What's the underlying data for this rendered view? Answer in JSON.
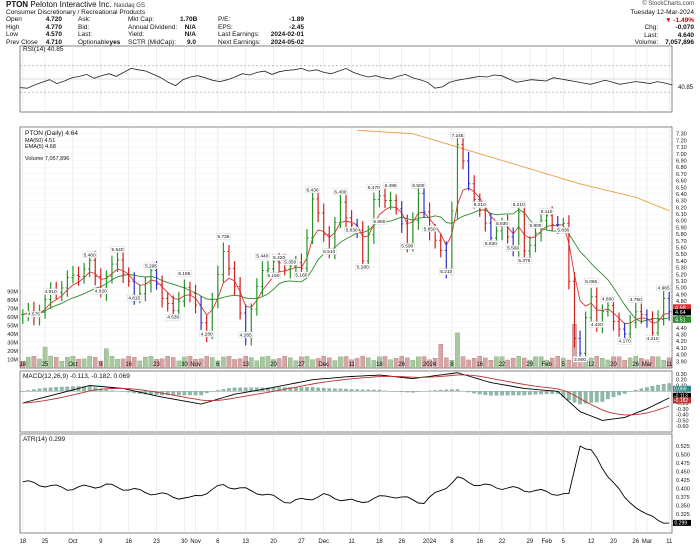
{
  "header": {
    "ticker": "PTON",
    "company": "Peloton Interactive Inc.",
    "exchange": "Nasdaq GS",
    "sector": "Consumer Discretionary / Recreational Products",
    "brand": "© StockCharts.com",
    "date": "Tuesday 12-Mar-2024",
    "quote": [
      {
        "k": "Open",
        "v": "4.720"
      },
      {
        "k": "High",
        "v": "4.770"
      },
      {
        "k": "Low",
        "v": "4.570"
      },
      {
        "k": "Prev Close",
        "v": "4.710"
      }
    ],
    "quote2": [
      {
        "k": "Ask:",
        "v": ""
      },
      {
        "k": "Bid:",
        "v": ""
      },
      {
        "k": "Last:",
        "v": ""
      },
      {
        "k": "Optionable",
        "v": "yes"
      }
    ],
    "fund": [
      {
        "k": "Mkt Cap:",
        "v": "1.70B"
      },
      {
        "k": "Annual Dividend:",
        "v": "N/A"
      },
      {
        "k": "Yield:",
        "v": "N/A"
      },
      {
        "k": "SCTR (MidCap):",
        "v": "9.0"
      }
    ],
    "fund2": [
      {
        "k": "P/E:",
        "v": "-1.89"
      },
      {
        "k": "EPS:",
        "v": "-2.45"
      },
      {
        "k": "Last Earnings:",
        "v": "2024-02-01"
      },
      {
        "k": "Next Earnings:",
        "v": "2024-05-02"
      }
    ],
    "right": [
      {
        "k": "",
        "v": "-1.49%"
      },
      {
        "k": "Chg:",
        "v": "-0.070"
      },
      {
        "k": "Last:",
        "v": "4.640"
      },
      {
        "k": "Volume:",
        "v": "7,057,896"
      }
    ]
  },
  "chart_data": {
    "type": "line",
    "x_labels": [
      "18",
      "25",
      "Oct",
      "9",
      "16",
      "23",
      "30",
      "Nov",
      "6",
      "13",
      "20",
      "27",
      "Dec",
      "11",
      "18",
      "26",
      "2024",
      "8",
      "16",
      "22",
      "29",
      "Feb",
      "5",
      "12",
      "20",
      "26",
      "Mar",
      "11"
    ],
    "rsi": {
      "label": "RSI(14) 40.85",
      "value_label": "40.85",
      "ylim": [
        0,
        100
      ],
      "levels": [
        30,
        70
      ],
      "values": [
        37,
        36,
        41,
        45,
        49,
        43,
        47,
        52,
        54,
        57,
        51,
        55,
        58,
        54,
        60,
        66,
        64,
        62,
        57,
        52,
        45,
        40,
        49,
        53,
        55,
        52,
        48,
        46,
        49,
        53,
        58,
        56,
        60,
        62,
        57,
        61,
        63,
        64,
        66,
        62,
        64,
        60,
        58,
        62,
        66,
        60,
        56,
        53,
        55,
        52,
        50,
        54,
        57,
        52,
        49,
        45,
        36,
        38,
        45,
        48,
        50,
        52,
        54,
        53,
        56,
        55,
        50,
        45,
        47,
        49,
        48,
        47,
        52,
        50,
        48,
        46,
        44,
        42,
        45,
        48,
        45,
        42,
        44,
        46,
        45,
        43,
        46,
        44,
        41
      ]
    },
    "price": {
      "legend": [
        "PTON (Daily) 4.64",
        "MA(50) 4.51",
        "EMA(5) 4.68",
        "",
        "Volume 7,057,896"
      ],
      "legend_colors": [
        "#000000",
        "#2e8b2e",
        "#e03030",
        "#e8a040",
        "#2e8b2e"
      ],
      "ylim": [
        3.8,
        7.4
      ],
      "yticks": [
        "7.30",
        "7.20",
        "7.10",
        "7.00",
        "6.90",
        "6.80",
        "6.70",
        "6.60",
        "6.50",
        "6.40",
        "6.30",
        "6.20",
        "6.10",
        "6.00",
        "5.90",
        "5.80",
        "5.70",
        "5.60",
        "5.50",
        "5.40",
        "5.30",
        "5.20",
        "5.10",
        "5.00",
        "4.90",
        "4.80",
        "4.70",
        "4.60",
        "4.50",
        "4.40",
        "4.30",
        "4.20",
        "4.10",
        "4.00",
        "3.90"
      ],
      "vol_ticks": [
        "90M",
        "80M",
        "70M",
        "60M",
        "50M",
        "40M",
        "30M",
        "20M",
        "10M"
      ],
      "last_labels": [
        "4.68",
        "4.64",
        "4.51"
      ],
      "bar_annotations": [
        {
          "i": 2,
          "v": 4.575,
          "t": "4.575"
        },
        {
          "i": 5,
          "v": 4.91,
          "t": "4.910"
        },
        {
          "i": 12,
          "v": 5.46,
          "t": "5.460"
        },
        {
          "i": 14,
          "v": 4.92,
          "t": "4.920"
        },
        {
          "i": 17,
          "v": 5.54,
          "t": "5.540"
        },
        {
          "i": 20,
          "v": 4.815,
          "t": "4.815"
        },
        {
          "i": 23,
          "v": 5.295,
          "t": "5.295"
        },
        {
          "i": 27,
          "v": 4.53,
          "t": "4.530"
        },
        {
          "i": 29,
          "v": 5.185,
          "t": "5.185"
        },
        {
          "i": 33,
          "v": 4.28,
          "t": "4.280"
        },
        {
          "i": 36,
          "v": 5.735,
          "t": "5.735"
        },
        {
          "i": 40,
          "v": 4.265,
          "t": "4.265"
        },
        {
          "i": 43,
          "v": 5.44,
          "t": "5.440"
        },
        {
          "i": 45,
          "v": 5.15,
          "t": "5.150"
        },
        {
          "i": 46,
          "v": 5.42,
          "t": "5.420"
        },
        {
          "i": 48,
          "v": 5.35,
          "t": "5.350"
        },
        {
          "i": 50,
          "v": 5.16,
          "t": "5.160"
        },
        {
          "i": 52,
          "v": 6.43,
          "t": "6.430"
        },
        {
          "i": 55,
          "v": 5.51,
          "t": "5.510"
        },
        {
          "i": 57,
          "v": 6.4,
          "t": "6.400"
        },
        {
          "i": 59,
          "v": 5.83,
          "t": "5.830"
        },
        {
          "i": 61,
          "v": 5.28,
          "t": "5.280"
        },
        {
          "i": 63,
          "v": 6.47,
          "t": "6.470"
        },
        {
          "i": 64,
          "v": 5.96,
          "t": "5.960"
        },
        {
          "i": 66,
          "v": 6.495,
          "t": "6.495"
        },
        {
          "i": 69,
          "v": 5.59,
          "t": "5.590"
        },
        {
          "i": 71,
          "v": 6.5,
          "t": "6.500"
        },
        {
          "i": 73,
          "v": 5.85,
          "t": "5.850"
        },
        {
          "i": 76,
          "v": 5.21,
          "t": "5.210"
        },
        {
          "i": 78,
          "v": 7.245,
          "t": "7.245"
        },
        {
          "i": 82,
          "v": 6.21,
          "t": "6.210"
        },
        {
          "i": 84,
          "v": 5.63,
          "t": "5.630"
        },
        {
          "i": 86,
          "v": 5.93,
          "t": "5.930"
        },
        {
          "i": 88,
          "v": 5.56,
          "t": "5.560"
        },
        {
          "i": 89,
          "v": 6.21,
          "t": "6.210"
        },
        {
          "i": 90,
          "v": 5.375,
          "t": "5.375"
        },
        {
          "i": 92,
          "v": 5.9,
          "t": "5.900"
        },
        {
          "i": 94,
          "v": 6.11,
          "t": "6.110"
        },
        {
          "i": 97,
          "v": 5.83,
          "t": "5.830"
        },
        {
          "i": 100,
          "v": 3.9,
          "t": "3.900"
        },
        {
          "i": 102,
          "v": 5.065,
          "t": "5.065"
        },
        {
          "i": 103,
          "v": 4.42,
          "t": "4.420"
        },
        {
          "i": 105,
          "v": 4.8,
          "t": "4.800"
        },
        {
          "i": 108,
          "v": 4.17,
          "t": "4.170"
        },
        {
          "i": 110,
          "v": 4.79,
          "t": "4.790"
        },
        {
          "i": 113,
          "v": 4.21,
          "t": "4.210"
        },
        {
          "i": 115,
          "v": 4.965,
          "t": "4.965"
        }
      ]
    },
    "macd": {
      "label": "MACD(12,26,9) -0.113, -0.182, 0.069",
      "ylim": [
        -0.7,
        0.35
      ],
      "yticks": [
        "0.30",
        "0.20",
        "0.10",
        "0.00",
        "-0.10",
        "-0.20",
        "-0.30",
        "-0.40",
        "-0.50",
        "-0.60"
      ],
      "last_labels": [
        "-0.113",
        "-0.182",
        "0.069"
      ]
    },
    "atr": {
      "label": "ATR(14) 0.299",
      "ylim": [
        0.27,
        0.56
      ],
      "yticks": [
        "0.525",
        "0.500",
        "0.475",
        "0.450",
        "0.425",
        "0.400",
        "0.375",
        "0.350",
        "0.325",
        "0.300"
      ],
      "last_label": "0.299"
    }
  }
}
